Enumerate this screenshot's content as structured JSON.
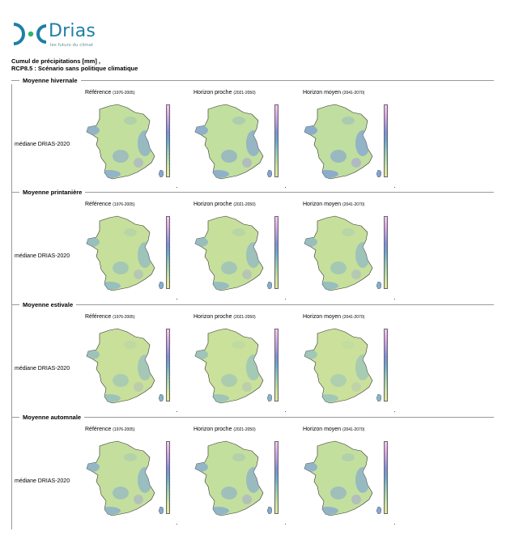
{
  "logo": {
    "word": "Drias",
    "tagline": "les futurs du climat"
  },
  "header": {
    "line1": "Cumul de précipitations [mm] ,",
    "line2": "RCP8.5 : Scénario sans politique climatique"
  },
  "columns": [
    {
      "label": "Référence",
      "period": "(1976-2005)"
    },
    {
      "label": "Horizon proche",
      "period": "(2021-2050)"
    },
    {
      "label": "Horizon moyen",
      "period": "(2041-2070)"
    }
  ],
  "row_label": "médiane DRIAS-2020",
  "sections": [
    {
      "title": "Moyenne hivernale",
      "wet_level": [
        0.55,
        0.6,
        0.65
      ]
    },
    {
      "title": "Moyenne printanière",
      "wet_level": [
        0.4,
        0.42,
        0.4
      ]
    },
    {
      "title": "Moyenne estivale",
      "wet_level": [
        0.3,
        0.28,
        0.22
      ]
    },
    {
      "title": "Moyenne automnale",
      "wet_level": [
        0.5,
        0.52,
        0.55
      ]
    }
  ],
  "legend_ticks": [
    "",
    "",
    "",
    "",
    "",
    "",
    "",
    "",
    "",
    "",
    "",
    "",
    "",
    "",
    "",
    "",
    "",
    "",
    "",
    "",
    "",
    "",
    ""
  ],
  "colors": {
    "accent": "#1e7fa6",
    "scale": [
      "#e6e890",
      "#cde6a0",
      "#a8d8a8",
      "#88c4c0",
      "#6aa6d8",
      "#7f8fe0",
      "#b79be6",
      "#e2a8ec",
      "#f3c8f3"
    ]
  }
}
